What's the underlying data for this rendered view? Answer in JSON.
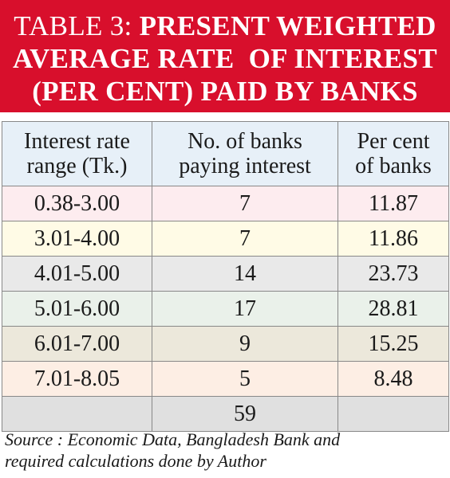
{
  "title": {
    "prefix": "TABLE 3:",
    "line1": "PRESENT WEIGHTED",
    "line2": "AVERAGE RATE  OF INTEREST",
    "line3": "(PER CENT) PAID BY BANKS"
  },
  "colors": {
    "title_background": "#d80f2c",
    "title_text": "#ffffff",
    "header_background": "#e7f0f8"
  },
  "table": {
    "headers": [
      {
        "line1": "Interest rate",
        "line2": "range (Tk.)"
      },
      {
        "line1": "No. of banks",
        "line2": "paying interest"
      },
      {
        "line1": "Per cent",
        "line2": "of banks"
      }
    ],
    "rows": [
      {
        "range": "0.38-3.00",
        "banks": "7",
        "percent": "11.87",
        "color": "#fdecef"
      },
      {
        "range": "3.01-4.00",
        "banks": "7",
        "percent": "11.86",
        "color": "#fffbe6"
      },
      {
        "range": "4.01-5.00",
        "banks": "14",
        "percent": "23.73",
        "color": "#e9e9e9"
      },
      {
        "range": "5.01-6.00",
        "banks": "17",
        "percent": "28.81",
        "color": "#eaf1ea"
      },
      {
        "range": "6.01-7.00",
        "banks": "9",
        "percent": "15.25",
        "color": "#ece8db"
      },
      {
        "range": "7.01-8.05",
        "banks": "5",
        "percent": "8.48",
        "color": "#fdeee4"
      }
    ],
    "total_row": {
      "range": "",
      "banks": "59",
      "percent": "",
      "color": "#e0e0e0"
    }
  },
  "source": {
    "line1": "Source : Economic Data, Bangladesh Bank and",
    "line2": "required calculations done by Author"
  }
}
